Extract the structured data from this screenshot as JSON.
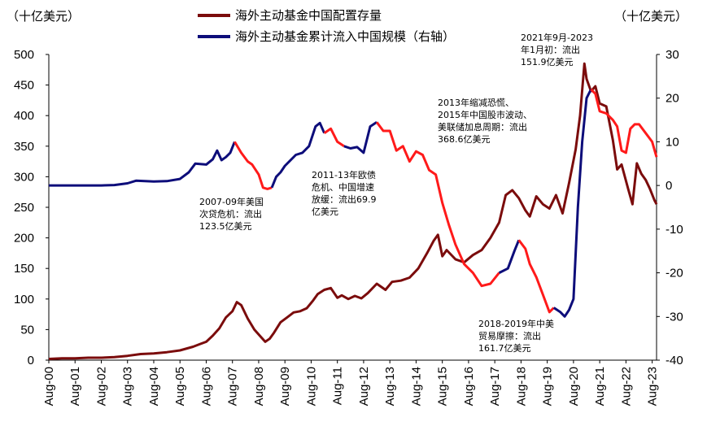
{
  "chart_data": {
    "type": "line",
    "y_left_label": "（十亿美元）",
    "y_right_label": "（十亿美元）",
    "ylim_left": [
      0,
      500
    ],
    "yticks_left": [
      0,
      50,
      100,
      150,
      200,
      250,
      300,
      350,
      400,
      450,
      500
    ],
    "ylim_right": [
      -40,
      30
    ],
    "yticks_right": [
      -40,
      -30,
      -20,
      -10,
      0,
      10,
      20,
      30
    ],
    "xlim": [
      "2000-08",
      "2023-10"
    ],
    "xtick_labels": [
      "Aug-00",
      "Aug-01",
      "Aug-02",
      "Aug-03",
      "Aug-04",
      "Aug-05",
      "Aug-06",
      "Aug-07",
      "Aug-08",
      "Aug-09",
      "Aug-10",
      "Aug-11",
      "Aug-12",
      "Aug-13",
      "Aug-14",
      "Aug-15",
      "Aug-16",
      "Aug-17",
      "Aug-18",
      "Aug-19",
      "Aug-20",
      "Aug-21",
      "Aug-22",
      "Aug-23"
    ],
    "xtick_dates": [
      "2000-08",
      "2001-08",
      "2002-08",
      "2003-08",
      "2004-08",
      "2005-08",
      "2006-08",
      "2007-08",
      "2008-08",
      "2009-08",
      "2010-08",
      "2011-08",
      "2012-08",
      "2013-08",
      "2014-08",
      "2015-08",
      "2016-08",
      "2017-08",
      "2018-08",
      "2019-08",
      "2020-08",
      "2021-08",
      "2022-08",
      "2023-08"
    ],
    "legend_position": "top-center",
    "grid": false,
    "series": [
      {
        "name": "海外主动基金中国配置存量",
        "axis": "left",
        "color": "#7B0C0C",
        "points": [
          [
            "2000-08",
            2
          ],
          [
            "2001-02",
            3
          ],
          [
            "2001-08",
            3
          ],
          [
            "2002-02",
            4
          ],
          [
            "2002-08",
            4
          ],
          [
            "2003-02",
            5
          ],
          [
            "2003-08",
            7
          ],
          [
            "2004-02",
            10
          ],
          [
            "2004-08",
            11
          ],
          [
            "2005-02",
            13
          ],
          [
            "2005-08",
            16
          ],
          [
            "2006-02",
            22
          ],
          [
            "2006-05",
            26
          ],
          [
            "2006-08",
            30
          ],
          [
            "2006-11",
            40
          ],
          [
            "2007-02",
            52
          ],
          [
            "2007-05",
            70
          ],
          [
            "2007-08",
            80
          ],
          [
            "2007-10",
            95
          ],
          [
            "2007-12",
            90
          ],
          [
            "2008-03",
            68
          ],
          [
            "2008-06",
            50
          ],
          [
            "2008-09",
            38
          ],
          [
            "2008-11",
            30
          ],
          [
            "2009-01",
            35
          ],
          [
            "2009-03",
            45
          ],
          [
            "2009-06",
            62
          ],
          [
            "2009-09",
            70
          ],
          [
            "2009-12",
            78
          ],
          [
            "2010-03",
            80
          ],
          [
            "2010-06",
            85
          ],
          [
            "2010-09",
            98
          ],
          [
            "2010-11",
            108
          ],
          [
            "2011-02",
            115
          ],
          [
            "2011-05",
            118
          ],
          [
            "2011-08",
            102
          ],
          [
            "2011-10",
            106
          ],
          [
            "2012-01",
            100
          ],
          [
            "2012-04",
            105
          ],
          [
            "2012-07",
            101
          ],
          [
            "2012-10",
            110
          ],
          [
            "2013-02",
            125
          ],
          [
            "2013-06",
            115
          ],
          [
            "2013-09",
            128
          ],
          [
            "2014-01",
            130
          ],
          [
            "2014-05",
            135
          ],
          [
            "2014-09",
            150
          ],
          [
            "2015-01",
            175
          ],
          [
            "2015-04",
            195
          ],
          [
            "2015-06",
            205
          ],
          [
            "2015-08",
            170
          ],
          [
            "2015-10",
            180
          ],
          [
            "2016-02",
            165
          ],
          [
            "2016-06",
            160
          ],
          [
            "2016-10",
            172
          ],
          [
            "2017-02",
            180
          ],
          [
            "2017-06",
            200
          ],
          [
            "2017-10",
            225
          ],
          [
            "2018-01",
            270
          ],
          [
            "2018-04",
            278
          ],
          [
            "2018-07",
            265
          ],
          [
            "2018-10",
            245
          ],
          [
            "2018-12",
            235
          ],
          [
            "2019-03",
            268
          ],
          [
            "2019-06",
            255
          ],
          [
            "2019-09",
            248
          ],
          [
            "2019-12",
            270
          ],
          [
            "2020-03",
            240
          ],
          [
            "2020-06",
            290
          ],
          [
            "2020-09",
            345
          ],
          [
            "2020-11",
            400
          ],
          [
            "2021-01",
            485
          ],
          [
            "2021-02",
            460
          ],
          [
            "2021-04",
            440
          ],
          [
            "2021-06",
            448
          ],
          [
            "2021-08",
            420
          ],
          [
            "2021-11",
            415
          ],
          [
            "2022-02",
            360
          ],
          [
            "2022-04",
            312
          ],
          [
            "2022-06",
            320
          ],
          [
            "2022-09",
            280
          ],
          [
            "2022-11",
            255
          ],
          [
            "2023-01",
            322
          ],
          [
            "2023-03",
            305
          ],
          [
            "2023-05",
            295
          ],
          [
            "2023-07",
            280
          ],
          [
            "2023-09",
            262
          ],
          [
            "2023-10",
            255
          ]
        ]
      },
      {
        "name": "海外主动基金累计流入中国规模（右轴）",
        "axis": "right",
        "color": "#0D0D7A",
        "highlight_color": "#FF1A1A",
        "points": [
          [
            "2000-08",
            0
          ],
          [
            "2001-08",
            0
          ],
          [
            "2002-08",
            0
          ],
          [
            "2003-02",
            0.1
          ],
          [
            "2003-08",
            0.5
          ],
          [
            "2003-12",
            1.1
          ],
          [
            "2004-08",
            0.9
          ],
          [
            "2005-02",
            1
          ],
          [
            "2005-08",
            1.5
          ],
          [
            "2005-12",
            3
          ],
          [
            "2006-03",
            5
          ],
          [
            "2006-08",
            4.8
          ],
          [
            "2006-11",
            6
          ],
          [
            "2007-01",
            8
          ],
          [
            "2007-03",
            5.8
          ],
          [
            "2007-05",
            6.5
          ],
          [
            "2007-07",
            7.5
          ],
          [
            "2007-09",
            10
          ],
          [
            "2007-12",
            7.5
          ],
          [
            "2008-03",
            5.5
          ],
          [
            "2008-05",
            4.8
          ],
          [
            "2008-08",
            2.5
          ],
          [
            "2008-10",
            -0.5
          ],
          [
            "2008-12",
            -0.8
          ],
          [
            "2009-02",
            -0.5
          ],
          [
            "2009-04",
            2
          ],
          [
            "2009-06",
            3
          ],
          [
            "2009-08",
            4.5
          ],
          [
            "2009-10",
            5.5
          ],
          [
            "2010-01",
            7
          ],
          [
            "2010-04",
            7.5
          ],
          [
            "2010-07",
            9
          ],
          [
            "2010-10",
            13.5
          ],
          [
            "2010-12",
            14.3
          ],
          [
            "2011-02",
            12
          ],
          [
            "2011-05",
            13
          ],
          [
            "2011-08",
            10
          ],
          [
            "2011-11",
            9
          ],
          [
            "2012-02",
            8.5
          ],
          [
            "2012-05",
            8.8
          ],
          [
            "2012-08",
            7.5
          ],
          [
            "2012-11",
            13.5
          ],
          [
            "2013-02",
            14.5
          ],
          [
            "2013-05",
            12.5
          ],
          [
            "2013-08",
            12.5
          ],
          [
            "2013-11",
            8
          ],
          [
            "2014-02",
            9
          ],
          [
            "2014-05",
            5.5
          ],
          [
            "2014-08",
            7.8
          ],
          [
            "2014-11",
            7
          ],
          [
            "2015-02",
            3.5
          ],
          [
            "2015-05",
            2.5
          ],
          [
            "2015-08",
            -4
          ],
          [
            "2015-11",
            -9
          ],
          [
            "2016-02",
            -13.5
          ],
          [
            "2016-06",
            -18
          ],
          [
            "2016-10",
            -20
          ],
          [
            "2017-02",
            -23
          ],
          [
            "2017-06",
            -22.5
          ],
          [
            "2017-10",
            -20
          ],
          [
            "2018-02",
            -19
          ],
          [
            "2018-05",
            -15
          ],
          [
            "2018-07",
            -12.5
          ],
          [
            "2018-10",
            -14.5
          ],
          [
            "2018-12",
            -18
          ],
          [
            "2019-03",
            -21
          ],
          [
            "2019-06",
            -25
          ],
          [
            "2019-09",
            -29
          ],
          [
            "2019-11",
            -28
          ],
          [
            "2020-02",
            -29
          ],
          [
            "2020-04",
            -30
          ],
          [
            "2020-06",
            -28.5
          ],
          [
            "2020-08",
            -26
          ],
          [
            "2020-10",
            -5
          ],
          [
            "2020-12",
            10
          ],
          [
            "2021-02",
            20
          ],
          [
            "2021-04",
            22
          ],
          [
            "2021-06",
            21
          ],
          [
            "2021-08",
            17
          ],
          [
            "2021-11",
            16.5
          ],
          [
            "2022-02",
            15
          ],
          [
            "2022-04",
            13.5
          ],
          [
            "2022-06",
            8
          ],
          [
            "2022-08",
            7.5
          ],
          [
            "2022-10",
            13
          ],
          [
            "2022-12",
            14
          ],
          [
            "2023-02",
            14
          ],
          [
            "2023-05",
            12
          ],
          [
            "2023-08",
            10
          ],
          [
            "2023-10",
            6.5
          ]
        ],
        "highlight_ranges": [
          [
            "2007-09",
            "2009-02"
          ],
          [
            "2011-02",
            "2011-12"
          ],
          [
            "2013-02",
            "2017-10"
          ],
          [
            "2018-07",
            "2019-11"
          ],
          [
            "2021-04",
            "2023-10"
          ]
        ]
      }
    ],
    "annotations": [
      {
        "lines": [
          "2021年9月-2023",
          "年1月初：流出",
          "151.9亿美元"
        ]
      },
      {
        "lines": [
          "2013年缩减恐慌、",
          "2015年中国股市波动、",
          "美联储加息周期：流出",
          "368.6亿美元"
        ]
      },
      {
        "lines": [
          "2011-13年欧债",
          "危机、中国增速",
          "放缓：流出69.9",
          "亿美元"
        ]
      },
      {
        "lines": [
          "2007-09年美国",
          "次贷危机：流出",
          "123.5亿美元"
        ]
      },
      {
        "lines": [
          "2018-2019年中美",
          "贸易摩擦：流出",
          "161.7亿美元"
        ]
      }
    ]
  }
}
